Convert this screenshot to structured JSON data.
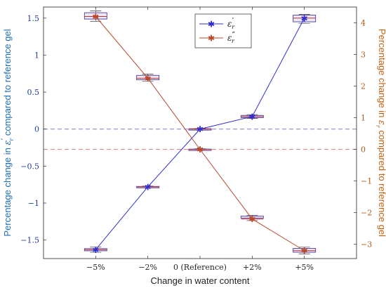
{
  "chart_data": {
    "type": "line",
    "xlabel": "Change in water content",
    "categories": [
      "−5%",
      "−2%",
      "0 (Reference)",
      "+2%",
      "+5%"
    ],
    "y_left": {
      "label_prefix": "Percentage change in ",
      "label_symbol": "ε",
      "label_mark": "′",
      "label_sub": "r",
      "label_suffix": " compared to reference gel",
      "ylim": [
        -1.75,
        1.65
      ],
      "ticks": [
        -1.5,
        -1,
        -0.5,
        0,
        0.5,
        1,
        1.5
      ],
      "tick_labels": [
        "−1.5",
        "−1",
        "−0.5",
        "0",
        "0.5",
        "1",
        "1.5"
      ],
      "color": "#1f6fb5"
    },
    "y_right": {
      "label_prefix": "Percentage change in ",
      "label_symbol": "ε",
      "label_mark": "″",
      "label_sub": "r",
      "label_suffix": " compared to reference gel",
      "ylim": [
        -3.45,
        4.5
      ],
      "ticks": [
        -3,
        -2,
        -1,
        0,
        1,
        2,
        3,
        4
      ],
      "tick_labels": [
        "−3",
        "−2",
        "−1",
        "0",
        "1",
        "2",
        "3",
        "4"
      ],
      "color": "#c06010"
    },
    "series": [
      {
        "legend_symbol": "ε",
        "legend_mark": "′",
        "legend_sub": "r",
        "axis": "left",
        "color": "#3030d0",
        "values": [
          -1.63,
          -0.78,
          0.0,
          0.17,
          1.5
        ],
        "box": [
          {
            "q1": -1.645,
            "q3": -1.615,
            "min": -1.665,
            "max": -1.595
          },
          {
            "q1": -0.787,
            "q3": -0.775,
            "min": -0.792,
            "max": -0.77
          },
          {
            "q1": -0.005,
            "q3": 0.005,
            "min": -0.008,
            "max": 0.008
          },
          {
            "q1": 0.155,
            "q3": 0.185,
            "min": 0.145,
            "max": 0.195
          },
          {
            "q1": 1.45,
            "q3": 1.54,
            "min": 1.43,
            "max": 1.55
          }
        ]
      },
      {
        "legend_symbol": "ε",
        "legend_mark": "″",
        "legend_sub": "r",
        "axis": "right",
        "color": "#b84a2a",
        "values": [
          4.2,
          2.25,
          0.0,
          -2.2,
          -3.2
        ],
        "box": [
          {
            "q1": 4.12,
            "q3": 4.32,
            "min": 4.05,
            "max": 4.38
          },
          {
            "q1": 2.2,
            "q3": 2.34,
            "min": 2.15,
            "max": 2.38
          },
          {
            "q1": -0.01,
            "q3": 0.01,
            "min": -0.02,
            "max": 0.02
          },
          {
            "q1": -2.17,
            "q3": -2.11,
            "min": -2.25,
            "max": -2.08
          },
          {
            "q1": -3.25,
            "q3": -3.13,
            "min": -3.3,
            "max": -3.09
          }
        ]
      }
    ],
    "reference_lines": [
      {
        "axis": "left",
        "value": 0,
        "color": "#7a7ad0"
      },
      {
        "axis": "right",
        "value": 0,
        "color": "#d08080"
      }
    ],
    "legend_position": "top-center",
    "grid": false
  }
}
